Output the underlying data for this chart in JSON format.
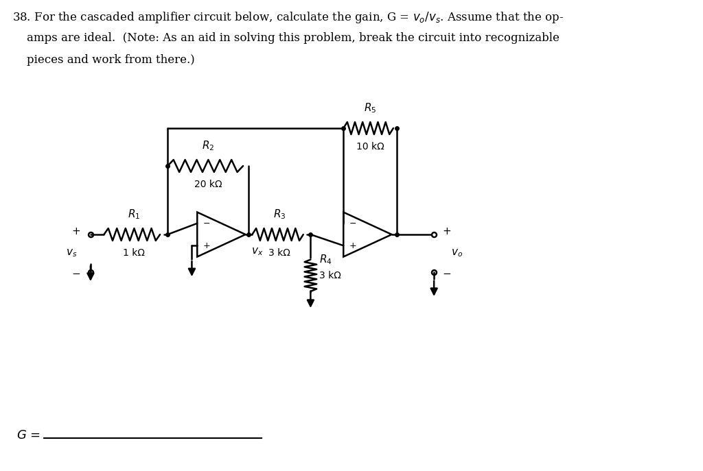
{
  "background_color": "#ffffff",
  "text_color": "#000000",
  "line_color": "#000000",
  "R1_label": "$R_1$",
  "R1_val": "1 kΩ",
  "R2_label": "$R_2$",
  "R2_val": "20 kΩ",
  "R3_label": "$R_3$",
  "R3_val": "3 kΩ",
  "R4_label": "$R_4$",
  "R4_val": "3 kΩ",
  "R5_label": "$R_5$",
  "R5_val": "10 kΩ",
  "vs_label": "$v_s$",
  "vo_label": "$v_o$",
  "vx_label": "$v_x$",
  "fontsize_label": 11,
  "fontsize_val": 10,
  "fontsize_text": 12,
  "lw": 1.8
}
